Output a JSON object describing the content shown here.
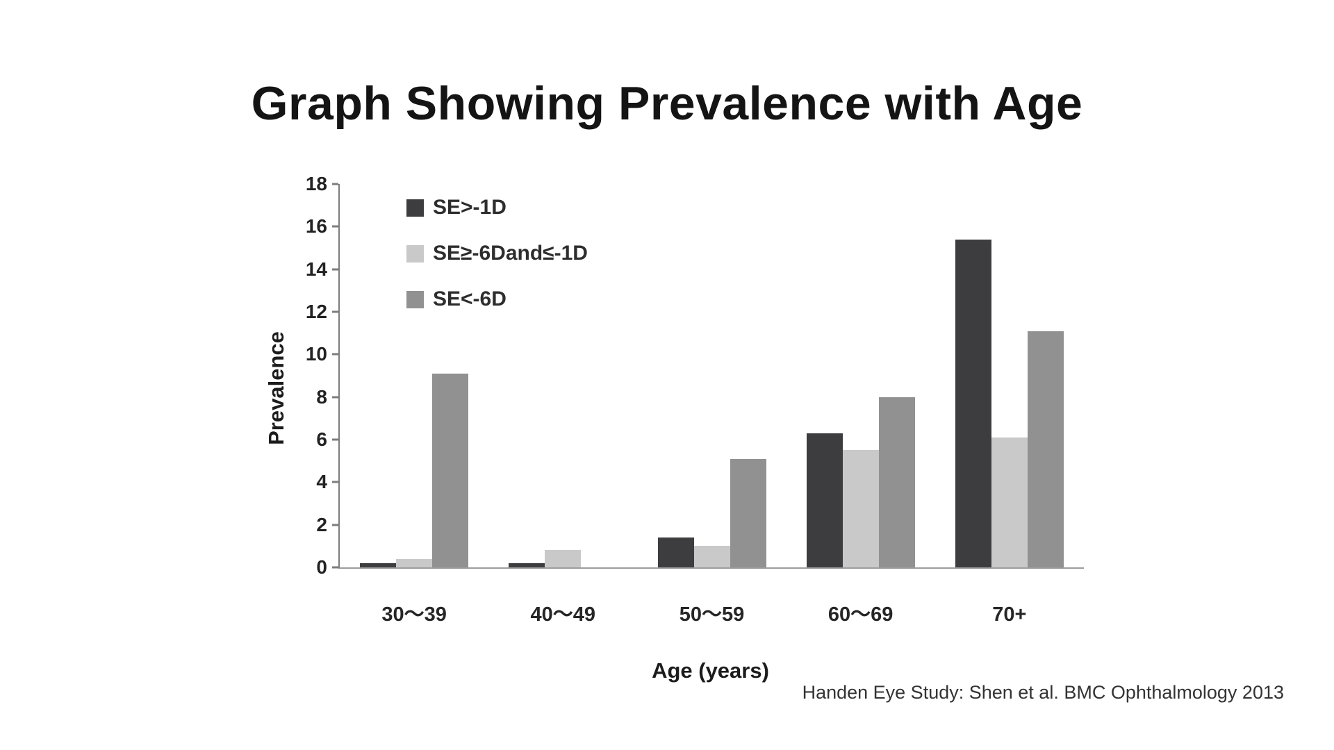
{
  "page": {
    "title": "Graph Showing Prevalence with Age",
    "caption": "Handen Eye Study: Shen et al. BMC Ophthalmology 2013"
  },
  "chart_data": {
    "type": "bar",
    "title": "Graph Showing Prevalence with Age",
    "xlabel": "Age (years)",
    "ylabel": "Prevalence",
    "categories": [
      "30～39",
      "40～49",
      "50～59",
      "60～69",
      "70+"
    ],
    "series": [
      {
        "name": "SE>-1D",
        "color": "#3d3d3f",
        "values": [
          0.2,
          0.2,
          1.4,
          6.3,
          15.4
        ]
      },
      {
        "name": "SE≥-6Dand≤-1D",
        "color": "#c9c9c9",
        "values": [
          0.4,
          0.8,
          1.0,
          5.5,
          6.1
        ]
      },
      {
        "name": "SE<-6D",
        "color": "#919191",
        "values": [
          9.1,
          0.0,
          5.1,
          8.0,
          11.1
        ]
      }
    ],
    "ylim": [
      0,
      18
    ],
    "yticks": [
      0,
      2,
      4,
      6,
      8,
      10,
      12,
      14,
      16,
      18
    ],
    "grid": false,
    "legend_position": "top-left-inside",
    "axis_color": "#7d7d7d"
  }
}
